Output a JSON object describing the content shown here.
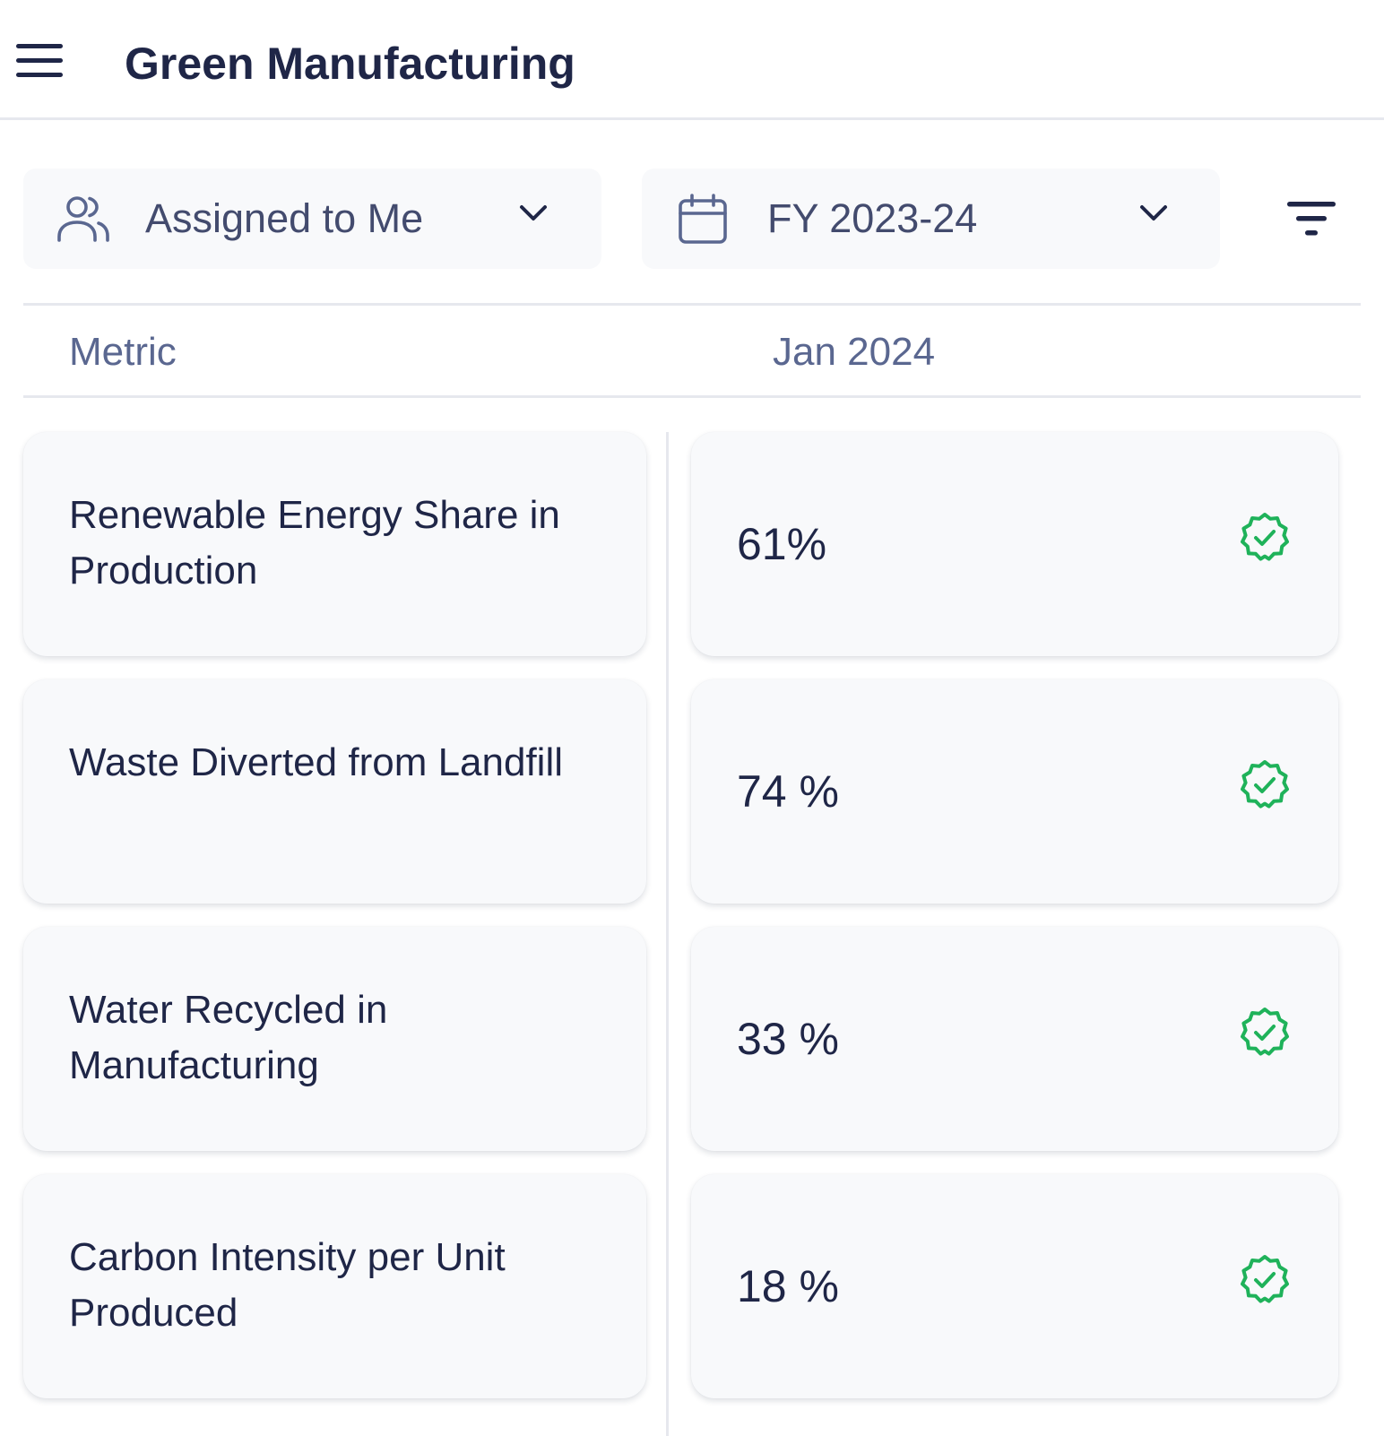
{
  "header": {
    "title": "Green Manufacturing",
    "menu_icon": "hamburger-menu-icon"
  },
  "filters": {
    "assignee": {
      "label": "Assigned to Me",
      "icon": "users-icon"
    },
    "period": {
      "label": "FY 2023-24",
      "icon": "calendar-icon"
    },
    "filter_icon": "filter-lines-icon"
  },
  "table": {
    "columns": {
      "metric": "Metric",
      "month": "Jan 2024"
    },
    "rows": [
      {
        "metric": "Renewable Energy Share in Production",
        "value": "61%",
        "status": "verified"
      },
      {
        "metric": "Waste Diverted from Landfill",
        "value": "74 %",
        "status": "verified"
      },
      {
        "metric": "Water Recycled in Manufacturing",
        "value": "33 %",
        "status": "verified"
      },
      {
        "metric": "Carbon Intensity per Unit Produced",
        "value": "18 %",
        "status": "verified"
      }
    ]
  },
  "colors": {
    "primary_text": "#1f2647",
    "muted_text": "#5a6790",
    "card_bg": "#f8f9fb",
    "status_green": "#1fb25a"
  }
}
